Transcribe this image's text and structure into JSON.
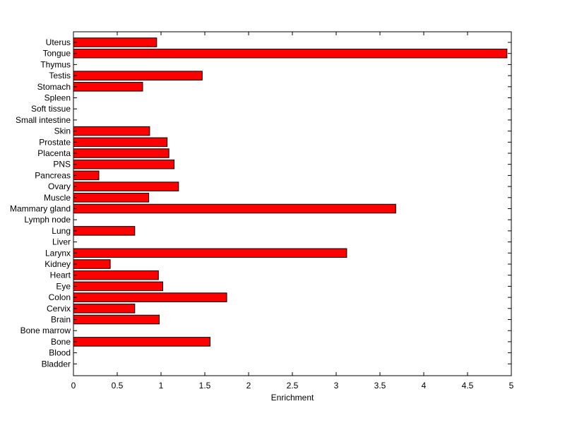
{
  "chart_data": {
    "type": "bar",
    "orientation": "horizontal",
    "categories": [
      "Uterus",
      "Tongue",
      "Thymus",
      "Testis",
      "Stomach",
      "Spleen",
      "Soft tissue",
      "Small intestine",
      "Skin",
      "Prostate",
      "Placenta",
      "PNS",
      "Pancreas",
      "Ovary",
      "Muscle",
      "Mammary gland",
      "Lymph node",
      "Lung",
      "Liver",
      "Larynx",
      "Kidney",
      "Heart",
      "Eye",
      "Colon",
      "Cervix",
      "Brain",
      "Bone marrow",
      "Bone",
      "Blood",
      "Bladder"
    ],
    "values": [
      0.95,
      4.95,
      0,
      1.47,
      0.79,
      0,
      0,
      0,
      0.87,
      1.07,
      1.09,
      1.15,
      0.29,
      1.2,
      0.86,
      3.68,
      0,
      0.7,
      0,
      3.12,
      0.42,
      0.97,
      1.02,
      1.75,
      0.7,
      0.98,
      0,
      1.56,
      0,
      0
    ],
    "xlabel": "Enrichment",
    "ylabel": "",
    "title": "",
    "xlim": [
      0,
      5
    ],
    "xticks": [
      "0",
      "0.5",
      "1",
      "1.5",
      "2",
      "2.5",
      "3",
      "3.5",
      "4",
      "4.5",
      "5"
    ],
    "grid": false,
    "legend": "none",
    "bar_color": "#ff0000",
    "edge_color": "#000000"
  }
}
